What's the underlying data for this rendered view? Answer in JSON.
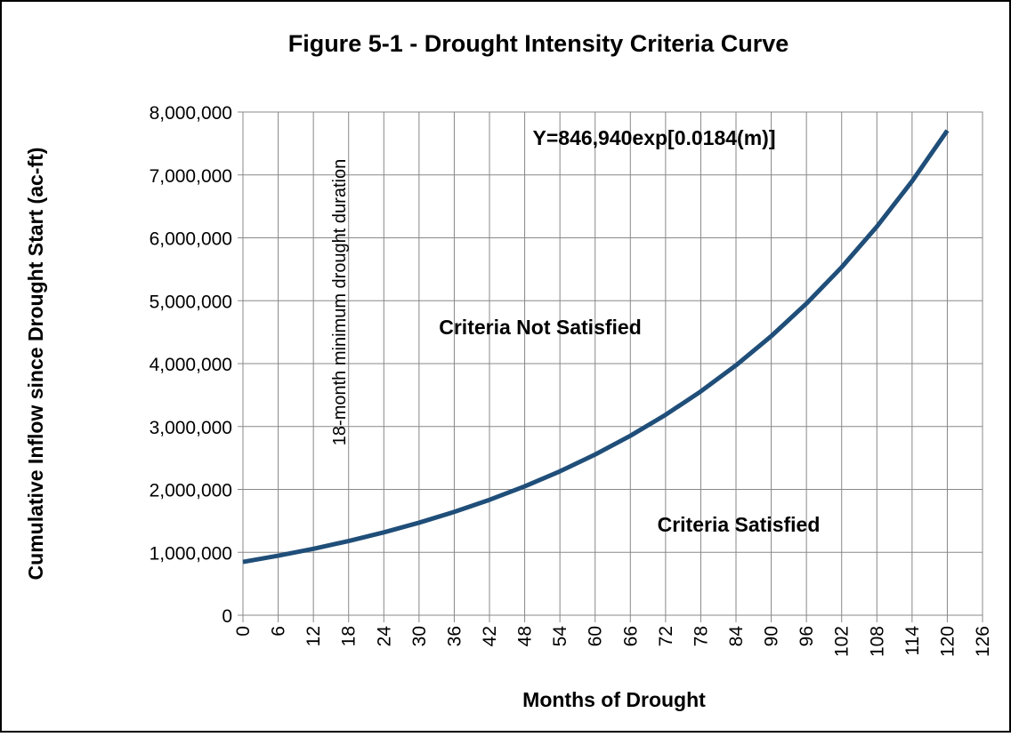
{
  "chart_data": {
    "type": "line",
    "title": "Figure 5-1 - Drought Intensity Criteria Curve",
    "x_label": "Months of Drought",
    "y_label": "Cumulative Inflow since Drought Start (ac-ft)",
    "annotations": [
      "Y=846,940exp[0.0184(m)]",
      "Criteria Not Satisfied",
      "Criteria Satisfied",
      "18-month minimum drought duration"
    ],
    "x": [
      0,
      6,
      12,
      18,
      24,
      30,
      36,
      42,
      48,
      54,
      60,
      66,
      72,
      78,
      84,
      90,
      96,
      102,
      108,
      114,
      120
    ],
    "series": [
      {
        "color": "#1f4e79",
        "values": [
          846940,
          945800,
          1056200,
          1179500,
          1317100,
          1470900,
          1642600,
          1834300,
          2048500,
          2287500,
          2554600,
          2852700,
          3185800,
          3557600,
          3972900,
          4436600,
          4954500,
          5532800,
          6178600,
          6899800,
          7705200
        ]
      }
    ],
    "xlim": [
      0,
      126
    ],
    "xticks": [
      0,
      6,
      12,
      18,
      24,
      30,
      36,
      42,
      48,
      54,
      60,
      66,
      72,
      78,
      84,
      90,
      96,
      102,
      108,
      114,
      120,
      126
    ],
    "ylim": [
      0,
      8000000
    ],
    "yticks": [
      0,
      {
        "value": 1000000,
        "label": "1,000,000"
      },
      {
        "value": 2000000,
        "label": "2,000,000"
      },
      {
        "value": 3000000,
        "label": "3,000,000"
      },
      {
        "value": 4000000,
        "label": "4,000,000"
      },
      {
        "value": 5000000,
        "label": "5,000,000"
      },
      {
        "value": 6000000,
        "label": "6,000,000"
      },
      {
        "value": 7000000,
        "label": "7,000,000"
      },
      {
        "value": 8000000,
        "label": "8,000,000"
      }
    ],
    "grid": true
  }
}
